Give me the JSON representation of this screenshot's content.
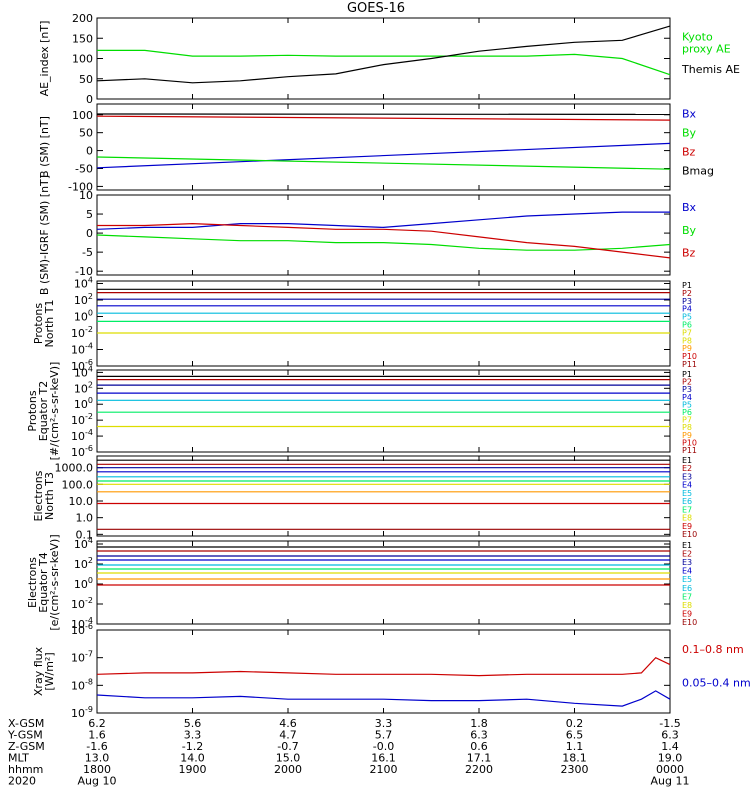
{
  "title": "GOES-16",
  "colors": {
    "black": "#000000",
    "blue": "#0000cc",
    "green": "#00dd00",
    "red": "#cc0000",
    "navy": "#000099",
    "cyan": "#00bbdd",
    "aqua": "#00dddd",
    "lime": "#00ee66",
    "yellow": "#dddd00",
    "orange": "#ff9900",
    "darkred": "#aa0000",
    "maroon": "#990000"
  },
  "chart_data": [
    {
      "type": "line",
      "ylabel": "AE_index [nT]",
      "ylim": [
        0,
        200
      ],
      "yticks": [
        0,
        50,
        100,
        150,
        200
      ],
      "ytick_labels": [
        "0",
        "50",
        "100",
        "150",
        "200"
      ],
      "x": [
        0,
        0.5,
        1,
        1.5,
        2,
        2.5,
        3,
        3.5,
        4,
        4.5,
        5,
        5.5,
        6
      ],
      "series": [
        {
          "name": "Kyoto proxy AE",
          "color": "green",
          "legend": [
            "Kyoto",
            "proxy AE"
          ],
          "values": [
            120,
            120,
            106,
            106,
            108,
            106,
            106,
            106,
            106,
            106,
            110,
            100,
            60
          ]
        },
        {
          "name": "Themis AE",
          "color": "black",
          "legend": [
            "Themis AE"
          ],
          "values": [
            45,
            50,
            40,
            45,
            55,
            62,
            85,
            100,
            118,
            130,
            140,
            145,
            180
          ]
        }
      ]
    },
    {
      "type": "line",
      "ylabel": "B (SM) [nT]",
      "ylim": [
        -110,
        130
      ],
      "yticks": [
        -100,
        -50,
        0,
        50,
        100
      ],
      "ytick_labels": [
        "-100",
        "-50",
        "0",
        "50",
        "100"
      ],
      "x": [
        0,
        6
      ],
      "series": [
        {
          "name": "Bx",
          "color": "blue",
          "legend": [
            "Bx"
          ],
          "values": [
            -48,
            20
          ]
        },
        {
          "name": "By",
          "color": "green",
          "legend": [
            "By"
          ],
          "values": [
            -18,
            -52
          ]
        },
        {
          "name": "Bz",
          "color": "red",
          "legend": [
            "Bz"
          ],
          "values": [
            96,
            85
          ]
        },
        {
          "name": "Bmag",
          "color": "black",
          "legend": [
            "Bmag"
          ],
          "values": [
            102,
            101
          ]
        }
      ]
    },
    {
      "type": "line",
      "ylabel": "B (SM)-IGRF (SM) [nT]",
      "ylim": [
        -11,
        10
      ],
      "yticks": [
        -10,
        -5,
        0,
        5,
        10
      ],
      "ytick_labels": [
        "-10",
        "-5",
        "0",
        "5",
        "10"
      ],
      "x": [
        0,
        0.5,
        1,
        1.5,
        2,
        2.5,
        3,
        3.5,
        4,
        4.5,
        5,
        5.5,
        6
      ],
      "series": [
        {
          "name": "Bx",
          "color": "blue",
          "legend": [
            "Bx"
          ],
          "values": [
            1,
            1.5,
            1.5,
            2.5,
            2.5,
            2,
            1.5,
            2.5,
            3.5,
            4.5,
            5,
            5.5,
            5.5
          ]
        },
        {
          "name": "By",
          "color": "green",
          "legend": [
            "By"
          ],
          "values": [
            -0.5,
            -1,
            -1.5,
            -2,
            -2,
            -2.5,
            -2.5,
            -3,
            -4,
            -4.5,
            -4.5,
            -4,
            -3
          ]
        },
        {
          "name": "Bz",
          "color": "red",
          "legend": [
            "Bz"
          ],
          "values": [
            2,
            2,
            2.5,
            2,
            1.5,
            1,
            1,
            0.5,
            -1,
            -2.5,
            -3.5,
            -5,
            -6.5
          ]
        }
      ]
    },
    {
      "type": "line",
      "log": true,
      "ylabel": [
        "Protons",
        "North T1"
      ],
      "ylim": [
        -6,
        4.3
      ],
      "yticks": [
        -6,
        -4,
        -2,
        0,
        2,
        4
      ],
      "ytick_labels": [
        {
          "b": "10",
          "e": "-6"
        },
        {
          "b": "10",
          "e": "-4"
        },
        {
          "b": "10",
          "e": "-2"
        },
        {
          "b": "10",
          "e": "0"
        },
        {
          "b": "10",
          "e": "2"
        },
        {
          "b": "10",
          "e": "4"
        }
      ],
      "x": [
        0,
        6
      ],
      "series": [
        {
          "name": "P1",
          "color": "black",
          "values": [
            3.3,
            3.3
          ]
        },
        {
          "name": "P2",
          "color": "darkred",
          "values": [
            2.9,
            2.9
          ]
        },
        {
          "name": "P3",
          "color": "navy",
          "values": [
            2.1,
            2.1
          ]
        },
        {
          "name": "P4",
          "color": "blue",
          "values": [
            1.3,
            1.3
          ]
        },
        {
          "name": "P5",
          "color": "cyan",
          "values": [
            0.4,
            0.4
          ]
        },
        {
          "name": "P6",
          "color": "lime",
          "values": [
            -0.6,
            -0.6
          ]
        },
        {
          "name": "P7",
          "color": "yellow",
          "values": [
            -2.0,
            -2.0
          ]
        }
      ],
      "legend": [
        {
          "text": "P1",
          "color": "black"
        },
        {
          "text": "P2",
          "color": "darkred"
        },
        {
          "text": "P3",
          "color": "navy"
        },
        {
          "text": "P4",
          "color": "blue"
        },
        {
          "text": "P5",
          "color": "cyan"
        },
        {
          "text": "P6",
          "color": "lime"
        },
        {
          "text": "P7",
          "color": "yellow"
        },
        {
          "text": "P8",
          "color": "yellow"
        },
        {
          "text": "P9",
          "color": "orange"
        },
        {
          "text": "P10",
          "color": "red"
        },
        {
          "text": "P11",
          "color": "maroon"
        }
      ]
    },
    {
      "type": "line",
      "log": true,
      "ylabel": [
        "Protons",
        "Equator T2",
        "[#/(cm²-s-sr-keV)]"
      ],
      "ylim": [
        -6,
        4.3
      ],
      "yticks": [
        -6,
        -4,
        -2,
        0,
        2,
        4
      ],
      "ytick_labels": [
        {
          "b": "10",
          "e": "-6"
        },
        {
          "b": "10",
          "e": "-4"
        },
        {
          "b": "10",
          "e": "-2"
        },
        {
          "b": "10",
          "e": "0"
        },
        {
          "b": "10",
          "e": "2"
        },
        {
          "b": "10",
          "e": "4"
        }
      ],
      "x": [
        0,
        6
      ],
      "series": [
        {
          "name": "P1",
          "color": "black",
          "values": [
            3.5,
            3.5
          ]
        },
        {
          "name": "P2",
          "color": "darkred",
          "values": [
            3.1,
            3.1
          ]
        },
        {
          "name": "P3",
          "color": "navy",
          "values": [
            2.4,
            2.4
          ]
        },
        {
          "name": "P4",
          "color": "blue",
          "values": [
            1.4,
            1.4
          ]
        },
        {
          "name": "P5",
          "color": "cyan",
          "values": [
            0.5,
            0.5
          ]
        },
        {
          "name": "P6",
          "color": "lime",
          "values": [
            -1.0,
            -1.0
          ]
        },
        {
          "name": "P7",
          "color": "yellow",
          "values": [
            -2.8,
            -2.8
          ]
        }
      ],
      "legend": [
        {
          "text": "P1",
          "color": "black"
        },
        {
          "text": "P2",
          "color": "darkred"
        },
        {
          "text": "P3",
          "color": "navy"
        },
        {
          "text": "P4",
          "color": "blue"
        },
        {
          "text": "P5",
          "color": "cyan"
        },
        {
          "text": "P6",
          "color": "lime"
        },
        {
          "text": "P7",
          "color": "yellow"
        },
        {
          "text": "P8",
          "color": "yellow"
        },
        {
          "text": "P9",
          "color": "orange"
        },
        {
          "text": "P10",
          "color": "red"
        },
        {
          "text": "P11",
          "color": "maroon"
        }
      ]
    },
    {
      "type": "line",
      "log": true,
      "ylabel": [
        "Electrons",
        "North T3"
      ],
      "ylim": [
        -1.1,
        3.7
      ],
      "yticks": [
        -1,
        0,
        1,
        2,
        3
      ],
      "ytick_labels": [
        "0.1",
        "1.0",
        "10.0",
        "100.0",
        "1000.0"
      ],
      "x": [
        0,
        6
      ],
      "series": [
        {
          "name": "E1",
          "color": "black",
          "values": [
            3.45,
            3.45
          ]
        },
        {
          "name": "E2",
          "color": "darkred",
          "values": [
            3.2,
            3.2
          ]
        },
        {
          "name": "E3",
          "color": "navy",
          "values": [
            3.0,
            3.0
          ]
        },
        {
          "name": "E4",
          "color": "blue",
          "values": [
            2.75,
            2.75
          ]
        },
        {
          "name": "E5",
          "color": "cyan",
          "values": [
            2.45,
            2.45
          ]
        },
        {
          "name": "E6",
          "color": "lime",
          "values": [
            2.2,
            2.2
          ]
        },
        {
          "name": "E7",
          "color": "yellow",
          "values": [
            2.0,
            2.0
          ]
        },
        {
          "name": "E8",
          "color": "orange",
          "values": [
            1.55,
            1.55
          ]
        },
        {
          "name": "E9",
          "color": "red",
          "values": [
            0.85,
            0.85
          ]
        },
        {
          "name": "E10",
          "color": "maroon",
          "values": [
            -0.7,
            -0.7
          ]
        }
      ],
      "legend": [
        {
          "text": "E1",
          "color": "black"
        },
        {
          "text": "E2",
          "color": "darkred"
        },
        {
          "text": "E3",
          "color": "navy"
        },
        {
          "text": "E4",
          "color": "blue"
        },
        {
          "text": "E5",
          "color": "cyan"
        },
        {
          "text": "E6",
          "color": "cyan"
        },
        {
          "text": "E7",
          "color": "lime"
        },
        {
          "text": "E8",
          "color": "yellow"
        },
        {
          "text": "E9",
          "color": "red"
        },
        {
          "text": "E10",
          "color": "maroon"
        }
      ]
    },
    {
      "type": "line",
      "log": true,
      "ylabel": [
        "Electrons",
        "Equator T4",
        "[e/(cm²-s-sr-keV)]"
      ],
      "ylim": [
        -4,
        4.3
      ],
      "yticks": [
        -4,
        -2,
        0,
        2,
        4
      ],
      "ytick_labels": [
        {
          "b": "10",
          "e": "-4"
        },
        {
          "b": "10",
          "e": "-2"
        },
        {
          "b": "10",
          "e": "0"
        },
        {
          "b": "10",
          "e": "2"
        },
        {
          "b": "10",
          "e": "4"
        }
      ],
      "x": [
        0,
        6
      ],
      "series": [
        {
          "name": "E1",
          "color": "black",
          "values": [
            3.7,
            3.7
          ]
        },
        {
          "name": "E2",
          "color": "darkred",
          "values": [
            3.3,
            3.3
          ]
        },
        {
          "name": "E3",
          "color": "navy",
          "values": [
            2.8,
            2.8
          ]
        },
        {
          "name": "E4",
          "color": "blue",
          "values": [
            2.4,
            2.4
          ]
        },
        {
          "name": "E5",
          "color": "cyan",
          "values": [
            1.9,
            1.9
          ]
        },
        {
          "name": "E6",
          "color": "lime",
          "values": [
            1.5,
            1.5
          ]
        },
        {
          "name": "E7",
          "color": "yellow",
          "values": [
            1.1,
            1.1
          ]
        },
        {
          "name": "E8",
          "color": "orange",
          "values": [
            0.5,
            0.5
          ]
        },
        {
          "name": "E9",
          "color": "red",
          "values": [
            -0.1,
            -0.1
          ]
        }
      ],
      "legend": [
        {
          "text": "E1",
          "color": "black"
        },
        {
          "text": "E2",
          "color": "darkred"
        },
        {
          "text": "E3",
          "color": "navy"
        },
        {
          "text": "E4",
          "color": "blue"
        },
        {
          "text": "E5",
          "color": "cyan"
        },
        {
          "text": "E6",
          "color": "cyan"
        },
        {
          "text": "E7",
          "color": "lime"
        },
        {
          "text": "E8",
          "color": "yellow"
        },
        {
          "text": "E9",
          "color": "red"
        },
        {
          "text": "E10",
          "color": "maroon"
        }
      ]
    },
    {
      "type": "line",
      "log": true,
      "ylabel": [
        "Xray flux",
        "[W/m²]"
      ],
      "ylim": [
        -9,
        -6
      ],
      "yticks": [
        -9,
        -8,
        -7,
        -6
      ],
      "ytick_labels": [
        {
          "b": "10",
          "e": "-9"
        },
        {
          "b": "10",
          "e": "-8"
        },
        {
          "b": "10",
          "e": "-7"
        },
        {
          "b": "10",
          "e": "-6"
        }
      ],
      "x": [
        0,
        0.5,
        1,
        1.5,
        2,
        2.5,
        3,
        3.5,
        4,
        4.5,
        5,
        5.5,
        5.7,
        5.85,
        6
      ],
      "series": [
        {
          "name": "0.1-0.8 nm",
          "color": "red",
          "legend": [
            "0.1–0.8 nm"
          ],
          "values": [
            -7.6,
            -7.55,
            -7.55,
            -7.5,
            -7.55,
            -7.6,
            -7.6,
            -7.6,
            -7.65,
            -7.6,
            -7.6,
            -7.6,
            -7.55,
            -7.0,
            -7.25
          ]
        },
        {
          "name": "0.05-0.4 nm",
          "color": "blue",
          "legend": [
            "0.05–0.4 nm"
          ],
          "values": [
            -8.35,
            -8.45,
            -8.45,
            -8.4,
            -8.5,
            -8.5,
            -8.5,
            -8.55,
            -8.55,
            -8.5,
            -8.65,
            -8.75,
            -8.5,
            -8.2,
            -8.5
          ]
        }
      ]
    }
  ],
  "xaxis": {
    "rows": [
      {
        "label": "X-GSM",
        "values": [
          "6.2",
          "5.6",
          "4.6",
          "3.3",
          "1.8",
          "0.2",
          "-1.5"
        ]
      },
      {
        "label": "Y-GSM",
        "values": [
          "1.6",
          "3.3",
          "4.7",
          "5.7",
          "6.3",
          "6.5",
          "6.3"
        ]
      },
      {
        "label": "Z-GSM",
        "values": [
          "-1.6",
          "-1.2",
          "-0.7",
          "-0.0",
          "0.6",
          "1.1",
          "1.4"
        ]
      },
      {
        "label": "MLT",
        "values": [
          "13.0",
          "14.0",
          "15.0",
          "16.1",
          "17.1",
          "18.1",
          "19.0"
        ]
      },
      {
        "label": "hhmm",
        "values": [
          "1800",
          "1900",
          "2000",
          "2100",
          "2200",
          "2300",
          "0000"
        ]
      },
      {
        "label": "2020",
        "values": [
          "Aug 10",
          "",
          "",
          "",
          "",
          "",
          "Aug 11"
        ]
      }
    ],
    "range": [
      0,
      6
    ]
  }
}
